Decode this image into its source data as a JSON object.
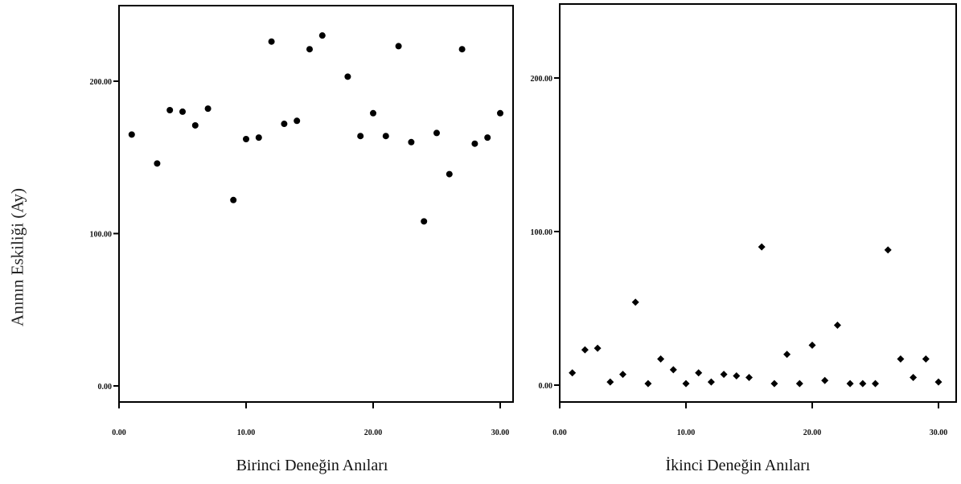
{
  "chart_data": [
    {
      "type": "scatter",
      "xlabel": "Birinci Deneğin Anıları",
      "ylabel": "Anının Eskiliği (Ay)",
      "xlim": [
        0,
        30
      ],
      "ylim": [
        0,
        250
      ],
      "x_ticks": [
        "0.00",
        "10.00",
        "20.00",
        "30.00"
      ],
      "y_ticks": [
        "0.00",
        "100.00",
        "200.00"
      ],
      "marker": "circle",
      "series": [
        {
          "x": [
            1,
            3,
            4,
            5,
            6,
            7,
            9,
            10,
            11,
            12,
            13,
            14,
            15,
            16,
            18,
            19,
            20,
            21,
            22,
            23,
            24,
            25,
            26,
            27,
            28,
            29,
            30
          ],
          "y": [
            165,
            146,
            181,
            180,
            171,
            182,
            122,
            162,
            163,
            226,
            172,
            174,
            221,
            230,
            203,
            164,
            179,
            164,
            223,
            160,
            108,
            166,
            139,
            221,
            159,
            163,
            179
          ]
        }
      ]
    },
    {
      "type": "scatter",
      "xlabel": "İkinci Deneğin Anıları",
      "ylabel": "Anının Eskiliği (Ay)",
      "xlim": [
        0,
        30
      ],
      "ylim": [
        0,
        250
      ],
      "x_ticks": [
        "0.00",
        "10.00",
        "20.00",
        "30.00"
      ],
      "y_ticks": [
        "0.00",
        "100.00",
        "200.00"
      ],
      "marker": "diamond",
      "series": [
        {
          "x": [
            1,
            2,
            3,
            4,
            5,
            6,
            7,
            8,
            9,
            10,
            11,
            12,
            13,
            14,
            15,
            16,
            17,
            18,
            19,
            20,
            21,
            22,
            23,
            24,
            25,
            26,
            27,
            28,
            29,
            30
          ],
          "y": [
            8,
            23,
            24,
            2,
            7,
            54,
            1,
            17,
            10,
            1,
            8,
            2,
            7,
            6,
            5,
            90,
            1,
            20,
            1,
            26,
            3,
            39,
            1,
            1,
            1,
            88,
            17,
            5,
            17,
            2
          ]
        }
      ]
    }
  ]
}
